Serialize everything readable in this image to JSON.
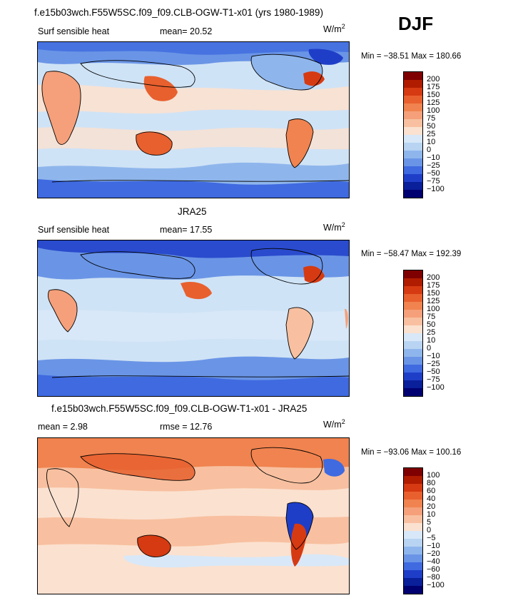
{
  "header": {
    "title": "f.e15b03wch.F55W5SC.f09_f09.CLB-OGW-T1-x01 (yrs 1980-1989)",
    "season": "DJF"
  },
  "panels": [
    {
      "name": "model",
      "title": "",
      "field": "Surf sensible heat",
      "stat1": "mean=  20.52",
      "stat2": "",
      "units": "W/m",
      "units_sup": "2",
      "minmax": "Min = −38.51  Max = 180.66",
      "levels": [
        "200",
        "175",
        "150",
        "125",
        "100",
        "75",
        "50",
        "25",
        "10",
        "0",
        "−10",
        "−25",
        "−50",
        "−75",
        "−100"
      ]
    },
    {
      "name": "obs",
      "title": "JRA25",
      "field": "Surf sensible heat",
      "stat1": "mean=  17.55",
      "stat2": "",
      "units": "W/m",
      "units_sup": "2",
      "minmax": "Min = −58.47  Max = 192.39",
      "levels": [
        "200",
        "175",
        "150",
        "125",
        "100",
        "75",
        "50",
        "25",
        "10",
        "0",
        "−10",
        "−25",
        "−50",
        "−75",
        "−100"
      ]
    },
    {
      "name": "diff",
      "title": "f.e15b03wch.F55W5SC.f09_f09.CLB-OGW-T1-x01 - JRA25",
      "field": "",
      "stat1": "mean =   2.98",
      "stat2": "rmse =  12.76",
      "units": "W/m",
      "units_sup": "2",
      "minmax": "Min = −93.06  Max = 100.16",
      "levels": [
        "100",
        "80",
        "60",
        "40",
        "20",
        "10",
        "5",
        "0",
        "−5",
        "−10",
        "−20",
        "−40",
        "−60",
        "−80",
        "−100"
      ]
    }
  ],
  "colors": {
    "scale": [
      "#7f0000",
      "#b01c00",
      "#d63a12",
      "#e8602e",
      "#f0834f",
      "#f5a07a",
      "#f8c0a0",
      "#fbe1d0",
      "#d8e8f8",
      "#b8d4f2",
      "#8fb6ec",
      "#6a95e6",
      "#3f6ae0",
      "#1f3ec8",
      "#0a1f9a",
      "#000070"
    ]
  }
}
